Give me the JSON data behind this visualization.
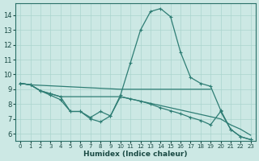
{
  "xlabel": "Humidex (Indice chaleur)",
  "ylabel": "",
  "background_color": "#cce8e4",
  "line_color": "#2e7d74",
  "grid_color": "#aad4ce",
  "xlim": [
    -0.5,
    23.5
  ],
  "ylim": [
    5.5,
    14.8
  ],
  "xticks": [
    0,
    1,
    2,
    3,
    4,
    5,
    6,
    7,
    8,
    9,
    10,
    11,
    12,
    13,
    14,
    15,
    16,
    17,
    18,
    19,
    20,
    21,
    22,
    23
  ],
  "yticks": [
    6,
    7,
    8,
    9,
    10,
    11,
    12,
    13,
    14
  ],
  "series": [
    {
      "x": [
        0,
        1,
        2,
        3,
        4,
        5,
        6,
        7,
        8,
        9,
        10,
        11,
        12,
        13,
        14,
        15,
        16,
        17,
        18,
        19,
        20,
        21,
        22,
        23
      ],
      "y": [
        9.4,
        9.3,
        8.9,
        8.7,
        8.5,
        7.5,
        7.5,
        7.0,
        6.8,
        7.2,
        8.6,
        10.8,
        13.0,
        14.25,
        14.45,
        13.9,
        11.5,
        9.8,
        9.4,
        9.2,
        7.6,
        6.3,
        5.8,
        5.6
      ],
      "marker": true
    },
    {
      "x": [
        0,
        1,
        10,
        19
      ],
      "y": [
        9.4,
        9.3,
        9.0,
        9.0
      ],
      "marker": false
    },
    {
      "x": [
        0,
        1,
        2,
        3,
        4,
        10,
        11,
        12,
        13,
        14,
        15,
        16,
        17,
        18,
        19,
        20,
        21,
        22,
        23
      ],
      "y": [
        9.4,
        9.3,
        8.9,
        8.7,
        8.5,
        8.5,
        8.35,
        8.2,
        8.05,
        7.9,
        7.75,
        7.6,
        7.45,
        7.3,
        7.15,
        7.0,
        6.6,
        6.3,
        5.9
      ],
      "marker": false
    },
    {
      "x": [
        0,
        1,
        2,
        3,
        4,
        5,
        6,
        7,
        8,
        9,
        10,
        11,
        12,
        13,
        14,
        15,
        16,
        17,
        18,
        19,
        20,
        21,
        22,
        23
      ],
      "y": [
        9.4,
        9.3,
        8.9,
        8.6,
        8.3,
        7.5,
        7.5,
        7.1,
        7.5,
        7.2,
        8.5,
        8.35,
        8.2,
        8.0,
        7.75,
        7.55,
        7.35,
        7.1,
        6.9,
        6.6,
        7.5,
        6.3,
        5.8,
        5.6
      ],
      "marker": true
    }
  ]
}
